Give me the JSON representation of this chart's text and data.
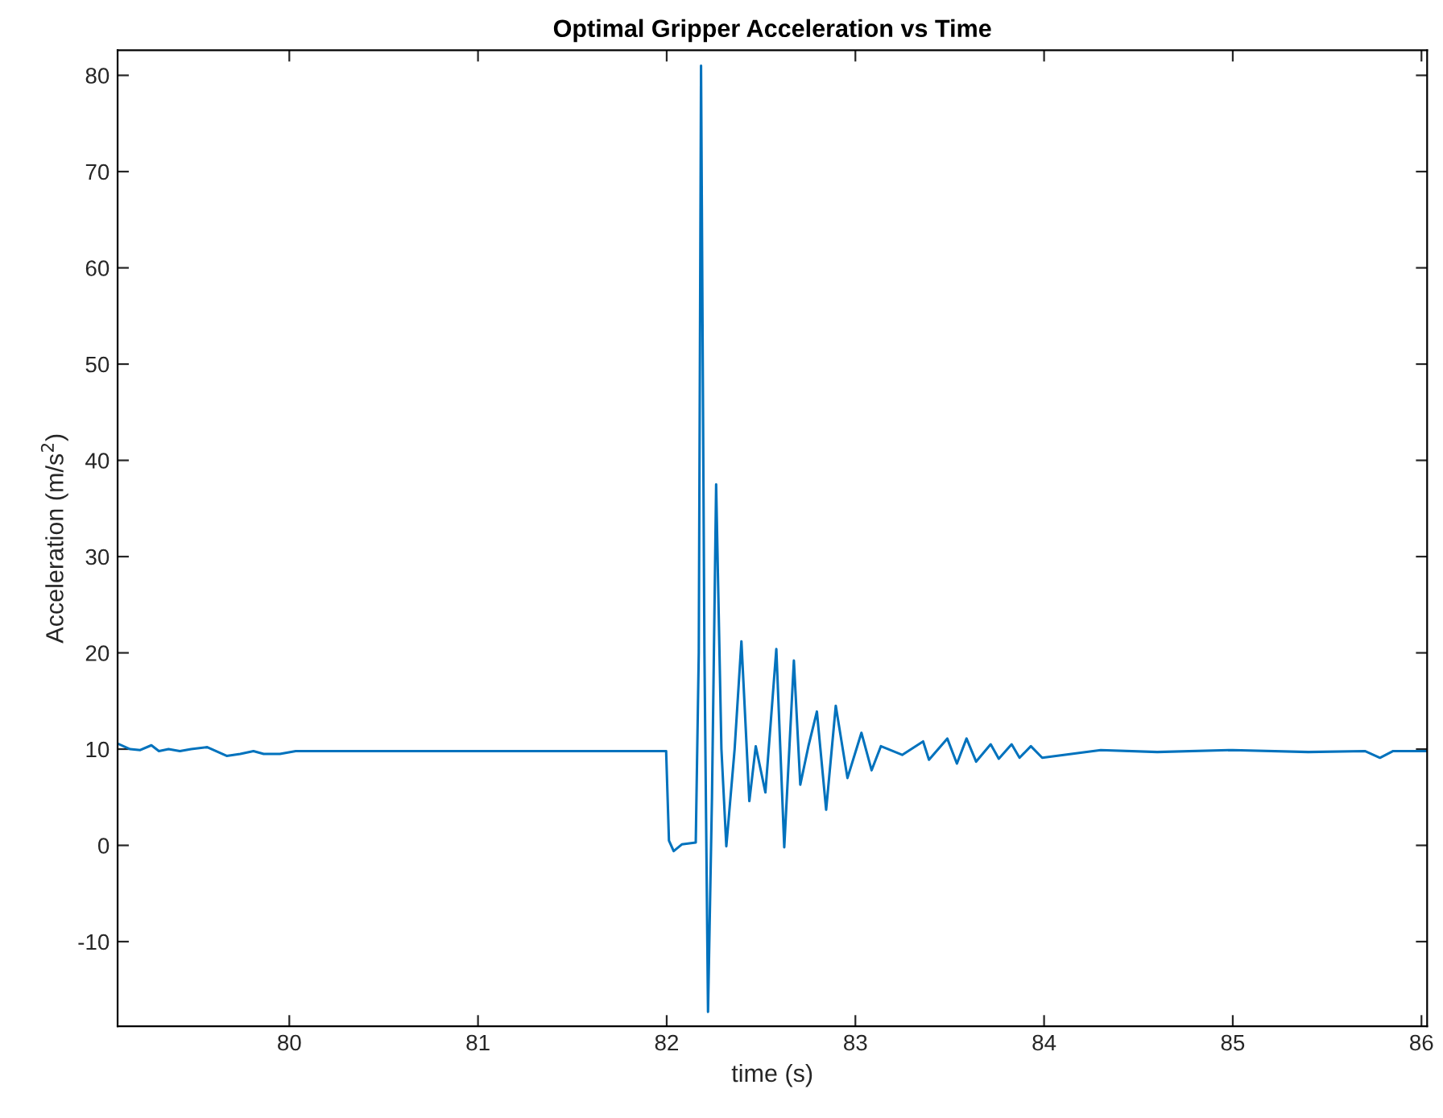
{
  "chart_data": {
    "type": "line",
    "title": "Optimal Gripper Acceleration vs Time",
    "xlabel": "time (s)",
    "ylabel": "Acceleration (m/s$^{2}$)",
    "xlim": [
      79.09,
      86.03
    ],
    "ylim": [
      -18.8,
      82.6
    ],
    "xticks": [
      80,
      81,
      82,
      83,
      84,
      85,
      86
    ],
    "yticks": [
      -10,
      0,
      10,
      20,
      30,
      40,
      50,
      60,
      70,
      80
    ],
    "grid": false,
    "legend": false,
    "marker": "none",
    "line_style": "solid",
    "series": [
      {
        "color": "#0072bd",
        "x": [
          79.099,
          79.156,
          79.21,
          79.269,
          79.309,
          79.36,
          79.42,
          79.48,
          79.565,
          79.668,
          79.74,
          79.81,
          79.864,
          79.95,
          80.034,
          81.0,
          81.997,
          82.012,
          82.037,
          82.08,
          82.154,
          82.17,
          82.182,
          82.2,
          82.219,
          82.24,
          82.262,
          82.29,
          82.316,
          82.36,
          82.396,
          82.438,
          82.472,
          82.523,
          82.581,
          82.623,
          82.674,
          82.708,
          82.751,
          82.796,
          82.845,
          82.896,
          82.958,
          83.032,
          83.086,
          83.135,
          83.248,
          83.359,
          83.39,
          83.487,
          83.538,
          83.589,
          83.64,
          83.717,
          83.76,
          83.828,
          83.87,
          83.93,
          83.99,
          84.3,
          84.6,
          85.0,
          85.4,
          85.7,
          85.78,
          85.85,
          86.03
        ],
        "values": [
          10.5,
          10.0,
          9.9,
          10.4,
          9.8,
          10.0,
          9.8,
          10.0,
          10.2,
          9.3,
          9.5,
          9.8,
          9.5,
          9.5,
          9.8,
          9.8,
          9.8,
          0.5,
          -0.6,
          0.1,
          0.3,
          20,
          81,
          20,
          -17.3,
          5,
          37.5,
          10,
          -0.1,
          10,
          21.2,
          4.6,
          10.3,
          5.5,
          20.4,
          -0.2,
          19.2,
          6.3,
          10.3,
          13.9,
          3.7,
          14.5,
          7.0,
          11.7,
          7.8,
          10.3,
          9.4,
          10.8,
          8.9,
          11.1,
          8.5,
          11.1,
          8.7,
          10.5,
          9.0,
          10.5,
          9.1,
          10.3,
          9.1,
          9.9,
          9.7,
          9.9,
          9.7,
          9.8,
          9.1,
          9.8,
          9.8
        ]
      }
    ]
  }
}
